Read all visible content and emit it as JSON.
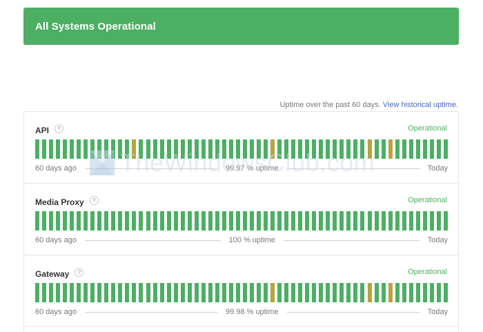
{
  "banner": {
    "title": "All Systems Operational"
  },
  "uptime_note": {
    "prefix": "Uptime over the past 60 days.",
    "link": "View historical uptime."
  },
  "components": [
    {
      "name": "API",
      "help": "?",
      "status": "Operational",
      "left_label": "60 days ago",
      "uptime": "99.97 % uptime",
      "right_label": "Today",
      "warn_days": [
        14,
        34,
        48,
        51
      ]
    },
    {
      "name": "Media Proxy",
      "help": "?",
      "status": "Operational",
      "left_label": "60 days ago",
      "uptime": "100 % uptime",
      "right_label": "Today",
      "warn_days": []
    },
    {
      "name": "Gateway",
      "help": "?",
      "status": "Operational",
      "left_label": "60 days ago",
      "uptime": "99.98 % uptime",
      "right_label": "Today",
      "warn_days": [
        34,
        48,
        51
      ]
    }
  ],
  "days": 60,
  "colors": {
    "operational": "#4caf63",
    "degraded": "#b8a33f"
  },
  "watermark": {
    "text": "TheWindowsClub.com"
  }
}
